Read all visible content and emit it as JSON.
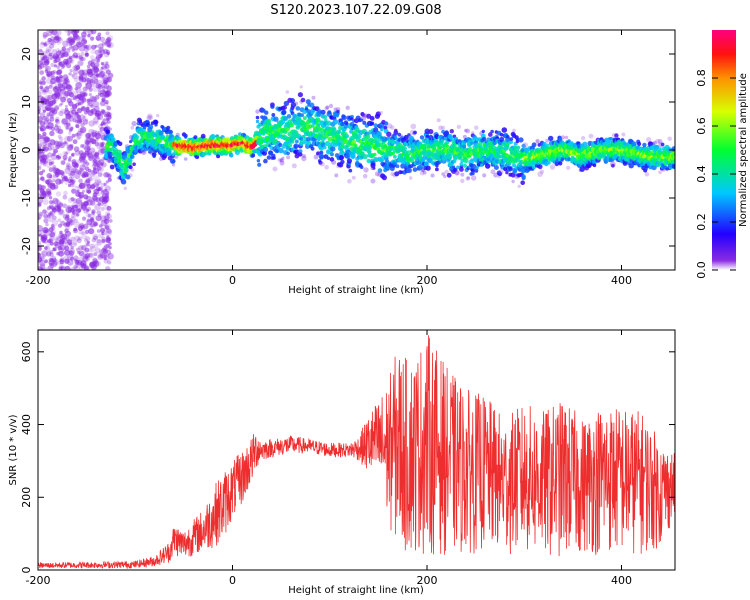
{
  "title": "S120.2023.107.22.09.G08",
  "colors": {
    "snr_line": "#ee2e2e"
  },
  "chart_data": [
    {
      "type": "heatmap",
      "name": "spectrogram",
      "xlabel": "Height of straight line (km)",
      "ylabel": "Frequency (Hz)",
      "xlim": [
        -200,
        455
      ],
      "ylim": [
        -25,
        25
      ],
      "xticks": [
        -200,
        0,
        200,
        400
      ],
      "yticks": [
        -20,
        -10,
        0,
        10,
        20
      ],
      "colormap": "rainbow (purple-blue-cyan-green-yellow-red-magenta)",
      "colorbar": {
        "label": "Normalized spectral amplitude",
        "range": [
          0,
          1
        ],
        "ticks": [
          "0.0",
          "0.2",
          "0.4",
          "0.6",
          "0.8"
        ]
      },
      "ridge": {
        "x": [
          -125,
          -110,
          -100,
          -90,
          -75,
          -60,
          -40,
          -20,
          0,
          10,
          20,
          30,
          40,
          60,
          80,
          100,
          120,
          140,
          160,
          180,
          200,
          220,
          240,
          260,
          280,
          300,
          320,
          340,
          360,
          380,
          400,
          420,
          440,
          455
        ],
        "y": [
          1,
          -4,
          2,
          3,
          2,
          1,
          0.5,
          1,
          1,
          1.5,
          0.5,
          3,
          4,
          4,
          5,
          3,
          2,
          1,
          0,
          -1,
          0,
          0,
          -1,
          0,
          -0.5,
          -2,
          -1,
          0,
          -1,
          0,
          0,
          -1,
          -1.5,
          -1.5
        ]
      }
    },
    {
      "type": "line",
      "name": "snr",
      "xlabel": "Height of straight line (km)",
      "ylabel": "SNR (10 * v/v)",
      "xlim": [
        -200,
        455
      ],
      "ylim": [
        0,
        660
      ],
      "xticks": [
        -200,
        0,
        200,
        400
      ],
      "yticks": [
        0,
        200,
        400,
        600
      ],
      "envelope": {
        "x": [
          -200,
          -100,
          -80,
          -65,
          -60,
          -50,
          -40,
          -30,
          -20,
          -10,
          0,
          10,
          20,
          25,
          30,
          40,
          60,
          80,
          100,
          120,
          130,
          140,
          150,
          160,
          170,
          180,
          190,
          200,
          220,
          240,
          260,
          280,
          300,
          320,
          340,
          360,
          380,
          400,
          420,
          440,
          455
        ],
        "lower": [
          5,
          5,
          10,
          20,
          40,
          30,
          40,
          50,
          60,
          80,
          140,
          180,
          240,
          280,
          300,
          310,
          320,
          320,
          310,
          310,
          300,
          260,
          220,
          120,
          60,
          40,
          40,
          40,
          40,
          40,
          50,
          40,
          40,
          30,
          30,
          40,
          40,
          40,
          40,
          60,
          140
        ],
        "upper": [
          20,
          25,
          40,
          80,
          130,
          110,
          140,
          170,
          230,
          270,
          300,
          330,
          370,
          390,
          360,
          360,
          370,
          360,
          350,
          350,
          370,
          430,
          470,
          520,
          620,
          580,
          600,
          660,
          560,
          500,
          480,
          420,
          460,
          440,
          470,
          420,
          460,
          450,
          440,
          360,
          320
        ]
      }
    }
  ]
}
